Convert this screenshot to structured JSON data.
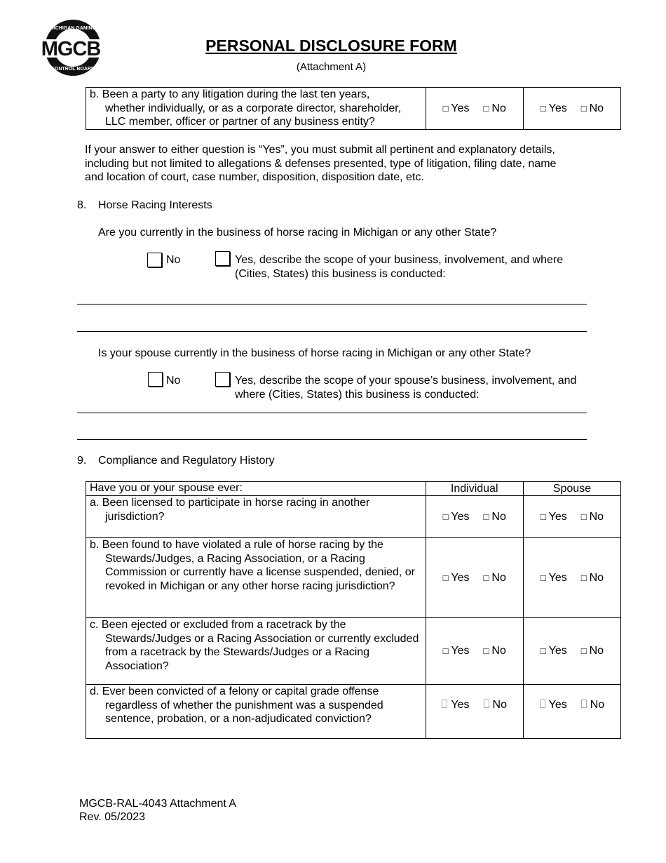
{
  "logo": {
    "text": "MGCB",
    "ring_top": "MICHIGAN GAMING",
    "ring_bottom": "CONTROL BOARD"
  },
  "header": {
    "title": "PERSONAL DISCLOSURE FORM",
    "subtitle": "(Attachment A)"
  },
  "top_table": {
    "question_b_line1": "b. Been a party to any litigation during the last ten years,",
    "question_b_rest": "whether individually, or as a corporate director, shareholder, LLC member, officer or partner of any business entity?"
  },
  "yes": "Yes",
  "no": "No",
  "note": "If your answer to either question is “Yes”, you must submit all pertinent and explanatory details, including but not limited to allegations & defenses presented, type of litigation, filing date, name and location of court, case number, disposition, disposition date, etc.",
  "section8": {
    "number": "8.",
    "title": "Horse Racing Interests",
    "q1": "Are you currently in the business of horse racing in Michigan or any other State?",
    "q1_yes": "Yes, describe the scope of your business, involvement, and where (Cities, States) this business is conducted:",
    "q2": "Is your spouse currently in the business of horse racing in Michigan or any other State?",
    "q2_yes": "Yes, describe the scope of your spouse’s business, involvement, and where (Cities, States) this business is conducted:"
  },
  "section9": {
    "number": "9.",
    "title": "Compliance and Regulatory History",
    "header": "Have you or your spouse ever:",
    "col_individual": "Individual",
    "col_spouse": "Spouse",
    "rows": [
      {
        "first": "a. Been licensed to participate in horse racing in another",
        "rest": "jurisdiction?"
      },
      {
        "first": "b. Been found to have violated a rule of horse racing by the",
        "rest": "Stewards/Judges, a Racing Association, or a Racing Commission or currently have a license suspended, denied, or revoked in Michigan or any other horse racing jurisdiction?"
      },
      {
        "first": "c. Been ejected or excluded from a racetrack by the",
        "rest": "Stewards/Judges or a Racing Association or currently excluded from a racetrack by the Stewards/Judges or a Racing Association?"
      },
      {
        "first": "d. Ever been convicted of a felony or capital grade offense",
        "rest": "regardless of whether the punishment was a suspended sentence, probation, or a non-adjudicated conviction?"
      }
    ]
  },
  "footer": {
    "form_id": "MGCB-RAL-4043 Attachment A",
    "revision": "Rev. 05/2023"
  }
}
